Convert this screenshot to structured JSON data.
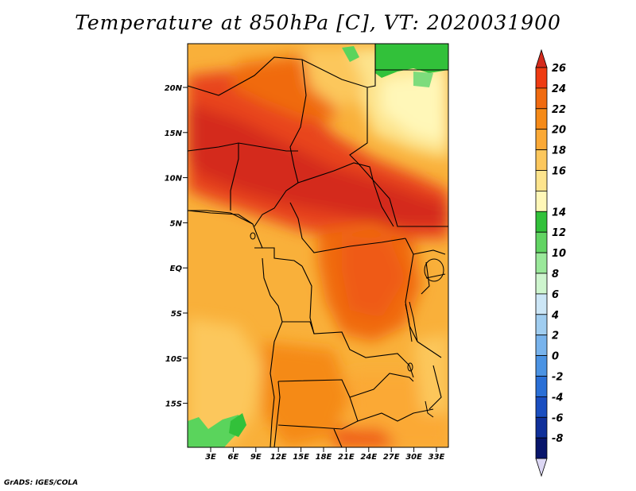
{
  "title": "Temperature at 850hPa [C], VT: 2020031900",
  "credit": "GrADS: IGES/COLA",
  "lat_ticks": [
    "20N",
    "15N",
    "10N",
    "5N",
    "EQ",
    "5S",
    "10S",
    "15S"
  ],
  "lon_ticks": [
    "3E",
    "6E",
    "9E",
    "12E",
    "15E",
    "18E",
    "21E",
    "24E",
    "27E",
    "30E",
    "33E"
  ],
  "colorbar": {
    "labels": [
      "26",
      "24",
      "22",
      "20",
      "18",
      "16",
      "14",
      "12",
      "10",
      "8",
      "6",
      "4",
      "2",
      "0",
      "-2",
      "-4",
      "-6",
      "-8"
    ],
    "colors": [
      "#d42a1c",
      "#ef3b12",
      "#f06a10",
      "#f58a17",
      "#fba936",
      "#fcc75c",
      "#fde48d",
      "#fff7b8",
      "#32c13a",
      "#62d463",
      "#9ae89a",
      "#cef5ce",
      "#cce6f6",
      "#a0cdf0",
      "#78b3ec",
      "#4b93e3",
      "#2a6fd6",
      "#1a4ec0",
      "#10309a",
      "#08156b",
      "#dcd7f4"
    ]
  },
  "legend_units": "C"
}
